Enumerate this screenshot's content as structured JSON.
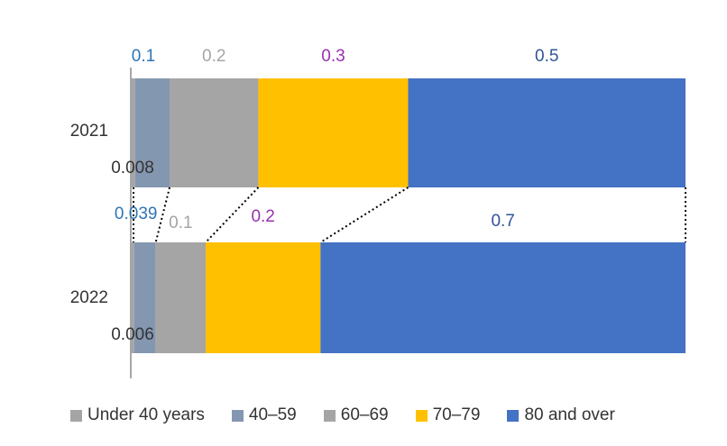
{
  "chart_data": {
    "type": "bar",
    "orientation": "horizontal",
    "stacked": "percent",
    "categories": [
      "2021",
      "2022"
    ],
    "series": [
      {
        "name": "Under 40 years",
        "color": "#a5a5a5",
        "values": [
          0.008,
          0.006
        ],
        "labels": [
          "0.008",
          "0.006"
        ],
        "label_color": "#333333"
      },
      {
        "name": "40–59",
        "color": "#8497b0",
        "values": [
          0.062,
          0.039
        ],
        "labels": [
          "0.1",
          "0.039"
        ],
        "label_color": "#2e75b6"
      },
      {
        "name": "60–69",
        "color": "#a5a5a5",
        "values": [
          0.16,
          0.09
        ],
        "labels": [
          "0.2",
          "0.1"
        ],
        "label_color": "#a5a5a5"
      },
      {
        "name": "70–79",
        "color": "#ffc000",
        "values": [
          0.27,
          0.207
        ],
        "labels": [
          "0.3",
          "0.2"
        ],
        "label_color": "#9b30b0"
      },
      {
        "name": "80 and over",
        "color": "#4472c4",
        "values": [
          0.5,
          0.658
        ],
        "labels": [
          "0.5",
          "0.7"
        ],
        "label_color": "#2f5597"
      }
    ],
    "connectors": "dotted",
    "legend_position": "bottom",
    "grid": false
  }
}
